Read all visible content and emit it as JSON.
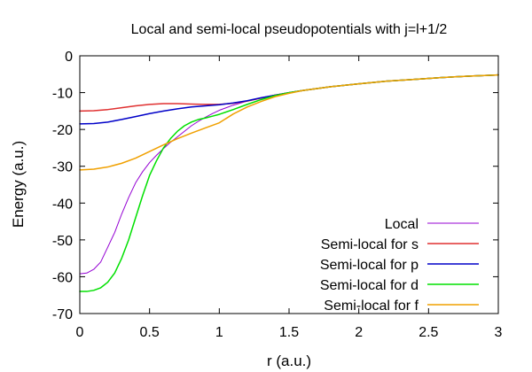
{
  "chart_data": {
    "type": "line",
    "title": "Local and semi-local pseudopotentials with j=l+1/2",
    "xlabel": "r (a.u.)",
    "ylabel": "Energy (a.u.)",
    "xlim": [
      0,
      3
    ],
    "ylim": [
      -70,
      0
    ],
    "xticks": [
      0,
      0.5,
      1,
      1.5,
      2,
      2.5,
      3
    ],
    "xtick_labels": [
      "0",
      "0.5",
      "1",
      "1.5",
      "2",
      "2.5",
      "3"
    ],
    "yticks": [
      0,
      -10,
      -20,
      -30,
      -40,
      -50,
      -60,
      -70
    ],
    "ytick_labels": [
      "0",
      "-10",
      "-20",
      "-30",
      "-40",
      "-50",
      "-60",
      "-70"
    ],
    "grid": false,
    "legend_position": "bottom-right",
    "series": [
      {
        "name": "Local",
        "color": "#9400d3",
        "width": 1,
        "x": [
          0,
          0.05,
          0.1,
          0.15,
          0.2,
          0.25,
          0.3,
          0.35,
          0.4,
          0.45,
          0.5,
          0.55,
          0.6,
          0.65,
          0.7,
          0.75,
          0.8,
          0.85,
          0.9,
          0.95,
          1.0,
          1.1,
          1.2,
          1.3,
          1.4,
          1.5,
          1.6,
          1.7,
          1.8,
          1.9,
          2.0,
          2.2,
          2.4,
          2.6,
          2.8,
          3.0
        ],
        "y": [
          -59.2,
          -59.0,
          -58.0,
          -56.0,
          -52.0,
          -48.0,
          -43.0,
          -38.5,
          -34.5,
          -31.5,
          -29.0,
          -27.0,
          -25.2,
          -23.5,
          -22.0,
          -20.5,
          -19.0,
          -17.8,
          -16.7,
          -15.7,
          -14.8,
          -13.4,
          -12.3,
          -11.4,
          -10.6,
          -10.0,
          -9.4,
          -8.9,
          -8.4,
          -8.0,
          -7.6,
          -6.9,
          -6.4,
          -5.9,
          -5.5,
          -5.2
        ]
      },
      {
        "name": "Semi-local for s",
        "color": "#e03030",
        "width": 1.5,
        "x": [
          0,
          0.1,
          0.2,
          0.3,
          0.4,
          0.5,
          0.6,
          0.7,
          0.8,
          0.9,
          1.0,
          1.1,
          1.2,
          1.3,
          1.4,
          1.5,
          1.6,
          1.7,
          1.8,
          1.9,
          2.0,
          2.2,
          2.4,
          2.6,
          2.8,
          3.0
        ],
        "y": [
          -15.0,
          -14.9,
          -14.6,
          -14.1,
          -13.6,
          -13.2,
          -13.0,
          -13.0,
          -13.1,
          -13.2,
          -13.2,
          -12.9,
          -12.3,
          -11.5,
          -10.7,
          -10.0,
          -9.4,
          -8.9,
          -8.4,
          -8.0,
          -7.6,
          -6.9,
          -6.4,
          -5.9,
          -5.5,
          -5.2
        ]
      },
      {
        "name": "Semi-local for p",
        "color": "#0000c8",
        "width": 1.5,
        "x": [
          0,
          0.1,
          0.2,
          0.3,
          0.4,
          0.5,
          0.6,
          0.7,
          0.8,
          0.9,
          1.0,
          1.1,
          1.2,
          1.3,
          1.4,
          1.5,
          1.6,
          1.7,
          1.8,
          1.9,
          2.0,
          2.2,
          2.4,
          2.6,
          2.8,
          3.0
        ],
        "y": [
          -18.5,
          -18.4,
          -18.0,
          -17.3,
          -16.5,
          -15.7,
          -15.0,
          -14.4,
          -13.9,
          -13.6,
          -13.3,
          -12.8,
          -12.2,
          -11.4,
          -10.7,
          -10.0,
          -9.4,
          -8.9,
          -8.4,
          -8.0,
          -7.6,
          -6.9,
          -6.4,
          -5.9,
          -5.5,
          -5.2
        ]
      },
      {
        "name": "Semi-local for d",
        "color": "#00e000",
        "width": 1.5,
        "x": [
          0,
          0.05,
          0.1,
          0.15,
          0.2,
          0.25,
          0.3,
          0.35,
          0.4,
          0.45,
          0.5,
          0.55,
          0.6,
          0.65,
          0.7,
          0.75,
          0.8,
          0.85,
          0.9,
          0.95,
          1.0,
          1.1,
          1.2,
          1.3,
          1.4,
          1.5,
          1.6,
          1.7,
          1.8,
          1.9,
          2.0,
          2.2,
          2.4,
          2.6,
          2.8,
          3.0
        ],
        "y": [
          -64.0,
          -64.0,
          -63.7,
          -63.0,
          -61.5,
          -59.0,
          -55.0,
          -50.0,
          -44.0,
          -38.0,
          -32.5,
          -28.5,
          -25.0,
          -22.5,
          -20.5,
          -19.0,
          -18.0,
          -17.3,
          -16.9,
          -16.4,
          -15.9,
          -14.6,
          -13.2,
          -11.9,
          -10.8,
          -10.0,
          -9.4,
          -8.9,
          -8.4,
          -8.0,
          -7.6,
          -6.9,
          -6.4,
          -5.9,
          -5.5,
          -5.2
        ]
      },
      {
        "name": "Semi-local for f",
        "color": "#f0a000",
        "width": 1.5,
        "x": [
          0,
          0.1,
          0.2,
          0.3,
          0.4,
          0.5,
          0.6,
          0.7,
          0.8,
          0.9,
          1.0,
          1.1,
          1.2,
          1.3,
          1.4,
          1.5,
          1.6,
          1.7,
          1.8,
          1.9,
          2.0,
          2.2,
          2.4,
          2.6,
          2.8,
          3.0
        ],
        "y": [
          -31.0,
          -30.8,
          -30.2,
          -29.2,
          -27.8,
          -26.0,
          -24.2,
          -22.5,
          -21.0,
          -19.6,
          -18.2,
          -15.8,
          -13.9,
          -12.4,
          -11.1,
          -10.2,
          -9.4,
          -8.9,
          -8.4,
          -8.0,
          -7.6,
          -6.9,
          -6.4,
          -5.9,
          -5.5,
          -5.2
        ]
      }
    ]
  }
}
